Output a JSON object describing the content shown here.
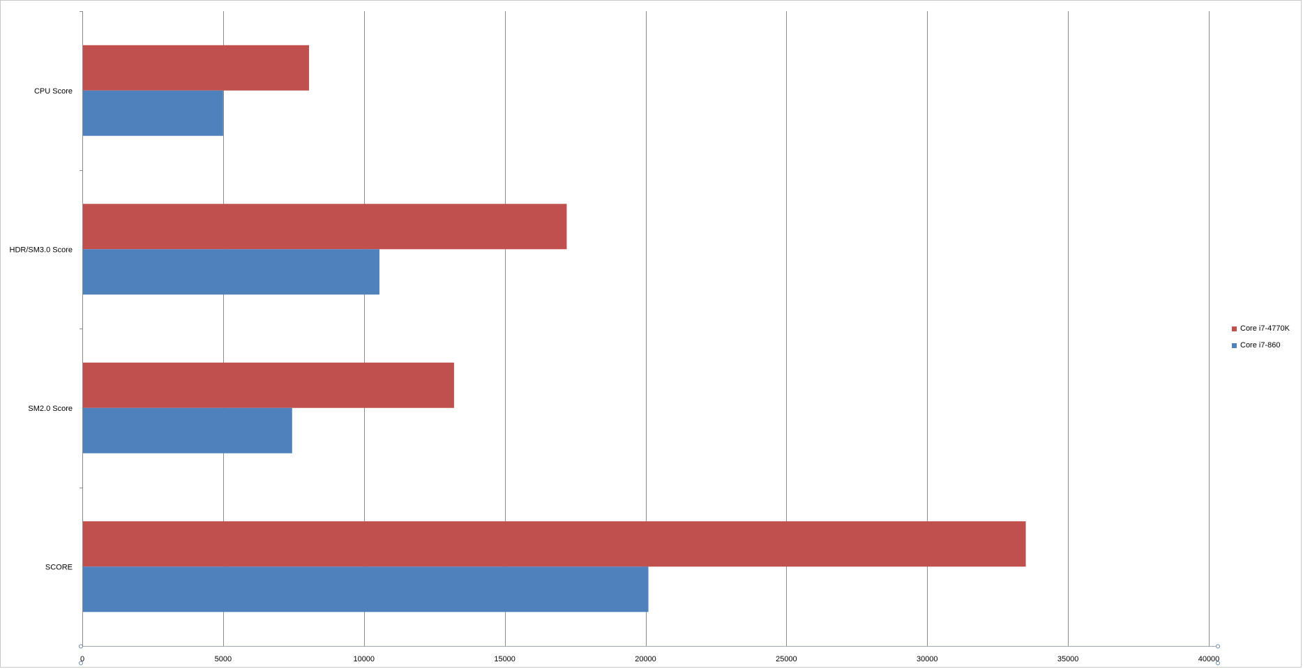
{
  "chart_data": {
    "type": "bar",
    "orientation": "horizontal",
    "categories": [
      "CPU Score",
      "HDR/SM3.0 Score",
      "SM2.0 Score",
      "SCORE"
    ],
    "series": [
      {
        "name": "Core i7-4770K",
        "color": "#C0504D",
        "values": [
          8050,
          17200,
          13200,
          33500
        ]
      },
      {
        "name": "Core i7-860",
        "color": "#4F81BD",
        "values": [
          5000,
          10550,
          7450,
          20100
        ]
      }
    ],
    "xlim": [
      0,
      40000
    ],
    "xticks": [
      0,
      5000,
      10000,
      15000,
      20000,
      25000,
      30000,
      35000,
      40000
    ],
    "grid": "vertical",
    "legend": "right"
  }
}
